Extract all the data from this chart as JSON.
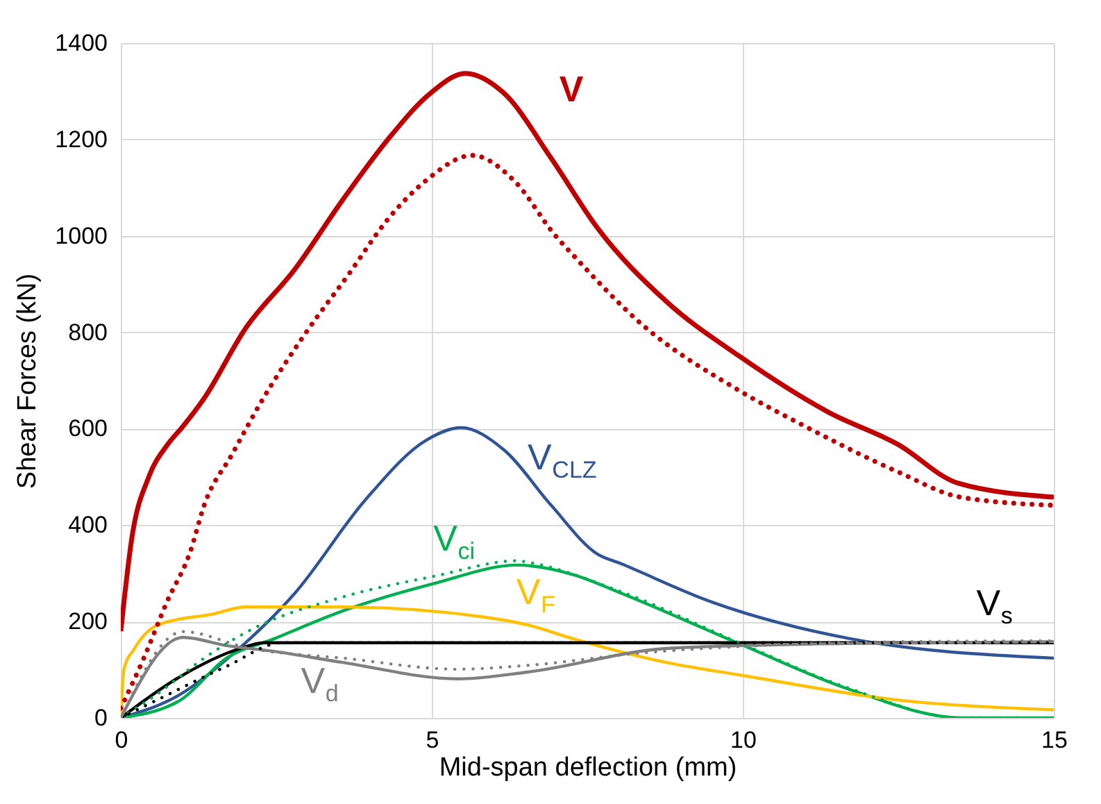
{
  "chart_data": {
    "type": "line",
    "xlabel": "Mid-span deflection (mm)",
    "ylabel": "Shear Forces (kN)",
    "xlim": [
      0,
      15
    ],
    "ylim": [
      0,
      1400
    ],
    "xticks": [
      0,
      5,
      10,
      15
    ],
    "yticks": [
      0,
      200,
      400,
      600,
      800,
      1000,
      1200,
      1400
    ],
    "grid": true,
    "marker": "none",
    "series": [
      {
        "name": "V",
        "color": "#c00000",
        "line_style": "solid",
        "x": [
          0,
          0.18,
          0.45,
          0.74,
          1.0,
          1.34,
          2.0,
          2.8,
          3.57,
          4.3,
          4.98,
          5.54,
          6.16,
          6.92,
          7.66,
          8.77,
          9.96,
          11.38,
          12.5,
          13.46,
          15
        ],
        "values": [
          180,
          375,
          500,
          565,
          605,
          663,
          807,
          931,
          1075,
          1201,
          1296,
          1337,
          1296,
          1161,
          1017,
          864,
          749,
          634,
          567,
          487,
          458
        ]
      },
      {
        "name": "V$_{CLZ}$",
        "color": "#2f5597",
        "line_style": "solid",
        "x": [
          0,
          0.96,
          1.85,
          2.8,
          3.93,
          4.91,
          5.47,
          6.16,
          6.92,
          7.66,
          8.04,
          9.51,
          11.74,
          15
        ],
        "values": [
          0,
          49,
          138,
          259,
          452,
          576,
          602,
          556,
          441,
          340,
          320,
          240,
          164,
          124
        ]
      },
      {
        "name": "V$_{ci}$",
        "color": "#00b050",
        "line_style": "solid",
        "x": [
          0,
          0.96,
          1.7,
          2.46,
          3.57,
          5.04,
          6.38,
          7.28,
          8.04,
          9.96,
          11.74,
          13.53,
          15
        ],
        "values": [
          0,
          37,
          124,
          164,
          222,
          279,
          317,
          297,
          259,
          153,
          58,
          0,
          0
        ]
      },
      {
        "name": "V$_{F}$",
        "color": "#ffc000",
        "line_style": "solid",
        "x": [
          0,
          0.05,
          0.22,
          0.6,
          1.5,
          2.0,
          3.57,
          5.8,
          6.54,
          7.28,
          8.77,
          9.96,
          12.5,
          15
        ],
        "values": [
          0,
          100,
          144,
          193,
          216,
          230,
          230,
          210,
          193,
          164,
          115,
          89,
          37,
          17
        ]
      },
      {
        "name": "V$_{s}$",
        "color": "#000000",
        "line_style": "solid",
        "x": [
          0,
          0.96,
          1.92,
          2.3,
          15
        ],
        "values": [
          0,
          86,
          144,
          156,
          156
        ]
      },
      {
        "name": "V$_{d}$",
        "color": "#808080",
        "line_style": "solid",
        "x": [
          0,
          1.0,
          1.7,
          2.46,
          3.57,
          5.42,
          6.54,
          8.77,
          11,
          13.2,
          15
        ],
        "values": [
          0,
          167,
          150,
          138,
          115,
          81,
          95,
          144,
          153,
          156,
          158
        ]
      },
      {
        "color": "#c00000",
        "line_style": "dotted",
        "x": [
          0,
          0.37,
          0.74,
          1.12,
          1.34,
          1.79,
          2.25,
          2.97,
          3.64,
          4.31,
          4.91,
          5.65,
          6.32,
          6.99,
          7.28,
          8.39,
          9.89,
          11,
          12.5,
          13.5,
          15
        ],
        "values": [
          20,
          124,
          240,
          346,
          441,
          547,
          654,
          798,
          916,
          1037,
          1115,
          1167,
          1115,
          1000,
          959,
          815,
          683,
          605,
          510,
          458,
          441
        ]
      },
      {
        "color": "#00b050",
        "line_style": "dotted",
        "x": [
          0,
          0.58,
          1.34,
          2.08,
          3.57,
          5.04,
          6.38,
          6.54,
          8.04,
          9.96,
          11.74,
          13.53,
          15
        ],
        "values": [
          0,
          49,
          124,
          182,
          251,
          294,
          326,
          323,
          262,
          155,
          60,
          0,
          0
        ]
      },
      {
        "color": "#000000",
        "line_style": "dotted",
        "x": [
          0,
          0.58,
          1.7,
          2.6,
          15
        ],
        "values": [
          0,
          37,
          107,
          156,
          156
        ]
      },
      {
        "color": "#808080",
        "line_style": "dotted",
        "x": [
          0,
          1.0,
          2.08,
          3.57,
          5.42,
          6.54,
          8.39,
          10.27,
          12.5,
          15
        ],
        "values": [
          0,
          179,
          144,
          124,
          101,
          109,
          135,
          150,
          158,
          160
        ]
      }
    ]
  }
}
